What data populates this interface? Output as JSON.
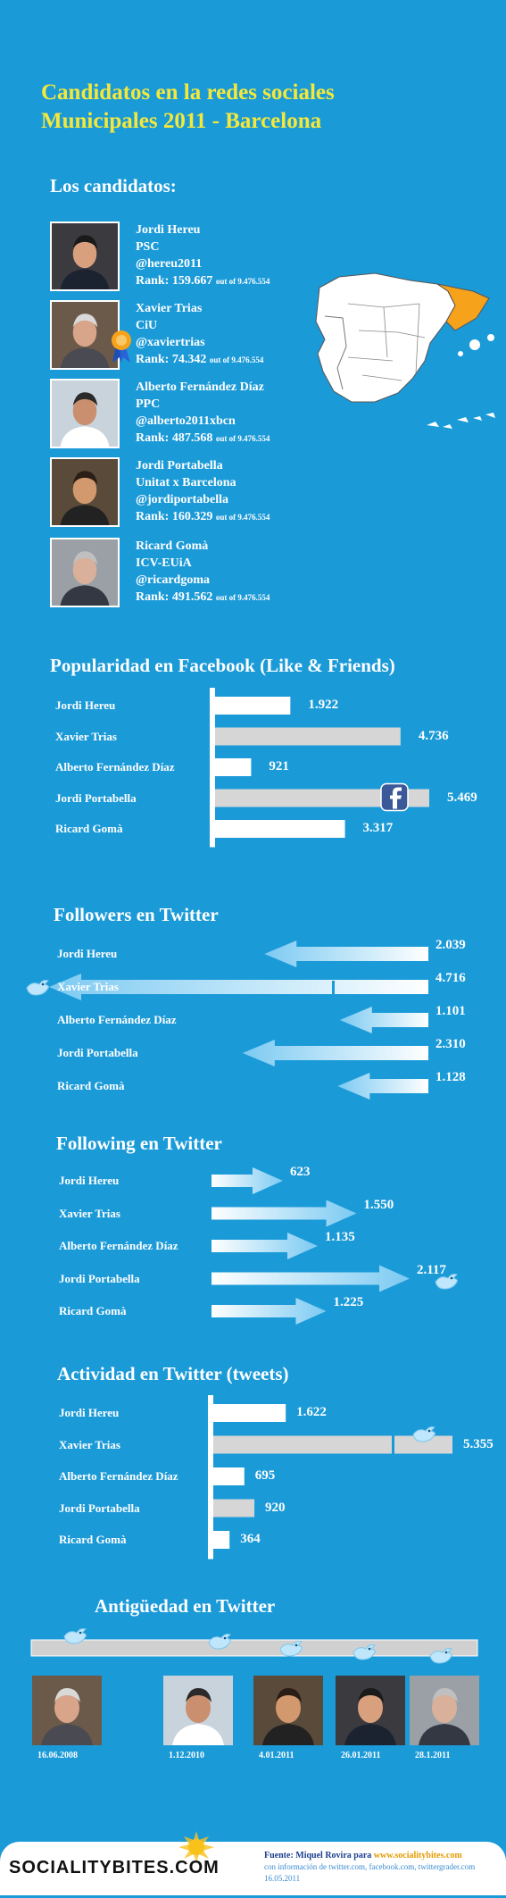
{
  "title_line1": "Candidatos en la redes sociales",
  "title_line2": "Municipales 2011 - Barcelona",
  "candidates_heading": "Los candidatos:",
  "candidates": [
    {
      "name": "Jordi Hereu",
      "party": "PSC",
      "handle": "@hereu2011",
      "rank": "Rank: 159.667",
      "rank_suffix": "out of 9.476.554"
    },
    {
      "name": "Xavier Trias",
      "party": "CiU",
      "handle": "@xaviertrias",
      "rank": "Rank: 74.342",
      "rank_suffix": "out of 9.476.554"
    },
    {
      "name": "Alberto Fernández Díaz",
      "party": "PPC",
      "handle": "@alberto2011xbcn",
      "rank": "Rank: 487.568",
      "rank_suffix": "out of 9.476.554"
    },
    {
      "name": "Jordi Portabella",
      "party": "Unitat x Barcelona",
      "handle": "@jordiportabella",
      "rank": "Rank: 160.329",
      "rank_suffix": "out of 9.476.554"
    },
    {
      "name": "Ricard Gomà",
      "party": "ICV-EUiA",
      "handle": "@ricardgoma",
      "rank": "Rank: 491.562",
      "rank_suffix": "out of 9.476.554"
    }
  ],
  "colors": {
    "background": "#1b9ad8",
    "title": "#f4e83a",
    "catalonia": "#f7a21b",
    "bar_white": "#ffffff",
    "bar_grey": "#d6d6d6"
  },
  "chart_data": [
    {
      "type": "bar",
      "title": "Popularidad en Facebook (Like & Friends)",
      "categories": [
        "Jordi Hereu",
        "Xavier Trias",
        "Alberto Fernández Díaz",
        "Jordi Portabella",
        "Ricard Gomà"
      ],
      "values": [
        1922,
        4736,
        921,
        5469,
        3317
      ],
      "labels": [
        "1.922",
        "4.736",
        "921",
        "5.469",
        "3.317"
      ]
    },
    {
      "type": "bar",
      "title": "Followers en Twitter",
      "categories": [
        "Jordi Hereu",
        "Xavier Trias",
        "Alberto Fernández Díaz",
        "Jordi Portabella",
        "Ricard Gomà"
      ],
      "values": [
        2039,
        4716,
        1101,
        2310,
        1128
      ],
      "labels": [
        "2.039",
        "4.716",
        "1.101",
        "2.310",
        "1.128"
      ]
    },
    {
      "type": "bar",
      "title": "Following en Twitter",
      "categories": [
        "Jordi Hereu",
        "Xavier Trias",
        "Alberto Fernández Díaz",
        "Jordi Portabella",
        "Ricard Gomà"
      ],
      "values": [
        623,
        1550,
        1135,
        2117,
        1225
      ],
      "labels": [
        "623",
        "1.550",
        "1.135",
        "2.117",
        "1.225"
      ]
    },
    {
      "type": "bar",
      "title": "Actividad en Twitter (tweets)",
      "categories": [
        "Jordi Hereu",
        "Xavier Trias",
        "Alberto Fernández Díaz",
        "Jordi Portabella",
        "Ricard Gomà"
      ],
      "values": [
        1622,
        5355,
        695,
        920,
        364
      ],
      "labels": [
        "1.622",
        "5.355",
        "695",
        "920",
        "364"
      ]
    }
  ],
  "antiguedad": {
    "title": "Antigüedad en Twitter",
    "dates": [
      "16.06.2008",
      "1.12.2010",
      "4.01.2011",
      "26.01.2011",
      "28.1.2011"
    ]
  },
  "footer": {
    "logo": "SOCIALITYBITES.COM",
    "fuente_label": "Fuente:",
    "fuente_author": "Miquel Rovira para",
    "fuente_url": "www.socialitybites.com",
    "line2": "con información de twitter.com, facebook.com, twittergrader.com",
    "line3": "16.05.2011"
  }
}
